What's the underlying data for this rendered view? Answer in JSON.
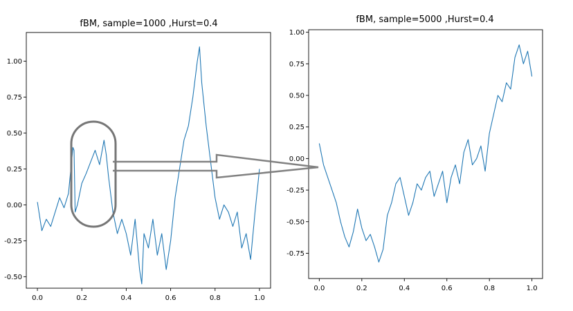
{
  "chart_data": [
    {
      "type": "line",
      "title": "fBM, sample=1000 ,Hurst=0.4",
      "samples": 1000,
      "hurst": 0.4,
      "xlabel": "",
      "ylabel": "",
      "xlim": [
        -0.05,
        1.05
      ],
      "ylim": [
        -0.58,
        1.2
      ],
      "xticks": [
        0.0,
        0.2,
        0.4,
        0.6,
        0.8,
        1.0
      ],
      "xtick_labels": [
        "0.0",
        "0.2",
        "0.4",
        "0.6",
        "0.8",
        "1.0"
      ],
      "yticks": [
        -0.5,
        -0.25,
        0.0,
        0.25,
        0.5,
        0.75,
        1.0
      ],
      "ytick_labels": [
        "-0.50",
        "-0.25",
        "0.00",
        "0.25",
        "0.50",
        "0.75",
        "1.00"
      ],
      "grid": false,
      "color": "#1f77b4",
      "series": [
        {
          "x": [
            0.0,
            0.02,
            0.04,
            0.06,
            0.08,
            0.1,
            0.12,
            0.14,
            0.16,
            0.165,
            0.17,
            0.18,
            0.2,
            0.22,
            0.24,
            0.26,
            0.28,
            0.3,
            0.31,
            0.32,
            0.34,
            0.36,
            0.38,
            0.4,
            0.42,
            0.44,
            0.46,
            0.47,
            0.48,
            0.5,
            0.52,
            0.54,
            0.56,
            0.58,
            0.6,
            0.62,
            0.64,
            0.66,
            0.68,
            0.7,
            0.72,
            0.73,
            0.74,
            0.76,
            0.78,
            0.8,
            0.82,
            0.84,
            0.86,
            0.88,
            0.9,
            0.92,
            0.94,
            0.96,
            0.98,
            1.0
          ],
          "y": [
            0.02,
            -0.18,
            -0.1,
            -0.15,
            -0.05,
            0.05,
            -0.02,
            0.08,
            0.4,
            0.38,
            -0.05,
            0.0,
            0.15,
            0.22,
            0.3,
            0.38,
            0.28,
            0.45,
            0.35,
            0.2,
            -0.05,
            -0.2,
            -0.1,
            -0.2,
            -0.35,
            -0.1,
            -0.45,
            -0.55,
            -0.2,
            -0.3,
            -0.1,
            -0.35,
            -0.2,
            -0.45,
            -0.25,
            0.05,
            0.25,
            0.45,
            0.55,
            0.75,
            1.0,
            1.1,
            0.85,
            0.55,
            0.3,
            0.05,
            -0.1,
            0.0,
            -0.05,
            -0.15,
            -0.05,
            -0.3,
            -0.2,
            -0.38,
            -0.05,
            0.25
          ]
        }
      ]
    },
    {
      "type": "line",
      "title": "fBM, sample=5000 ,Hurst=0.4",
      "samples": 5000,
      "hurst": 0.4,
      "xlabel": "",
      "ylabel": "",
      "xlim": [
        -0.05,
        1.05
      ],
      "ylim": [
        -0.95,
        1.02
      ],
      "xticks": [
        0.0,
        0.2,
        0.4,
        0.6,
        0.8,
        1.0
      ],
      "xtick_labels": [
        "0.0",
        "0.2",
        "0.4",
        "0.6",
        "0.8",
        "1.0"
      ],
      "yticks": [
        -0.75,
        -0.5,
        -0.25,
        0.0,
        0.25,
        0.5,
        0.75,
        1.0
      ],
      "ytick_labels": [
        "-0.75",
        "-0.50",
        "-0.25",
        "0.00",
        "0.25",
        "0.50",
        "0.75",
        "1.00"
      ],
      "grid": false,
      "color": "#1f77b4",
      "series": [
        {
          "x": [
            0.0,
            0.02,
            0.04,
            0.06,
            0.08,
            0.1,
            0.12,
            0.14,
            0.16,
            0.18,
            0.2,
            0.22,
            0.24,
            0.26,
            0.28,
            0.3,
            0.32,
            0.34,
            0.36,
            0.38,
            0.4,
            0.42,
            0.44,
            0.46,
            0.48,
            0.5,
            0.52,
            0.54,
            0.56,
            0.58,
            0.6,
            0.62,
            0.64,
            0.66,
            0.68,
            0.7,
            0.72,
            0.74,
            0.76,
            0.78,
            0.8,
            0.82,
            0.84,
            0.86,
            0.88,
            0.9,
            0.92,
            0.94,
            0.96,
            0.98,
            1.0
          ],
          "y": [
            0.12,
            -0.05,
            -0.15,
            -0.25,
            -0.35,
            -0.5,
            -0.62,
            -0.7,
            -0.58,
            -0.4,
            -0.55,
            -0.65,
            -0.6,
            -0.7,
            -0.82,
            -0.72,
            -0.45,
            -0.35,
            -0.2,
            -0.15,
            -0.3,
            -0.45,
            -0.35,
            -0.2,
            -0.25,
            -0.15,
            -0.1,
            -0.3,
            -0.2,
            -0.1,
            -0.35,
            -0.15,
            -0.05,
            -0.2,
            0.05,
            0.15,
            -0.05,
            0.0,
            0.1,
            -0.1,
            0.2,
            0.35,
            0.5,
            0.45,
            0.6,
            0.55,
            0.8,
            0.9,
            0.75,
            0.85,
            0.65
          ]
        }
      ]
    }
  ]
}
